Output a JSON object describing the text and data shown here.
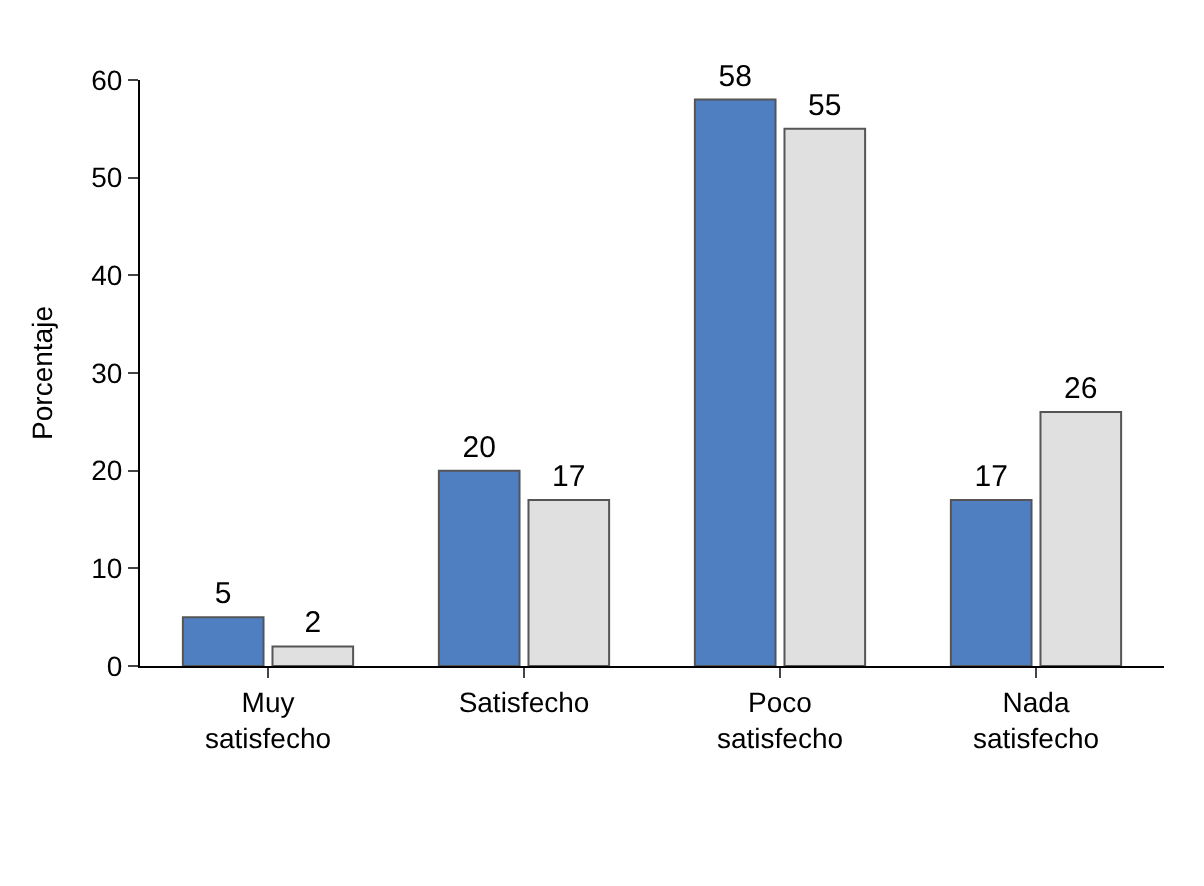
{
  "chart_data": {
    "type": "bar",
    "ylabel": "Porcentaje",
    "categories": [
      "Muy satisfecho",
      "Satisfecho",
      "Poco satisfecho",
      "Nada satisfecho"
    ],
    "series": [
      {
        "color": "#4f7fc0",
        "values": [
          5,
          20,
          58,
          17
        ]
      },
      {
        "color": "#e0e0e0",
        "values": [
          2,
          17,
          55,
          26
        ]
      }
    ],
    "ylim": [
      0,
      60
    ],
    "yticks": [
      0,
      10,
      20,
      30,
      40,
      50,
      60
    ],
    "data_labels": true
  }
}
